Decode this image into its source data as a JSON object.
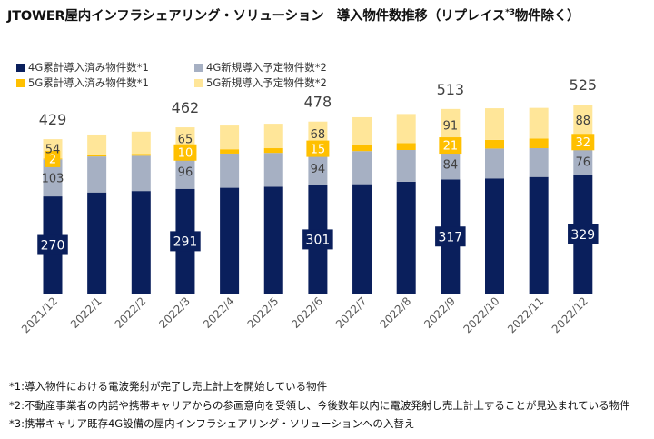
{
  "title": {
    "main": "JTOWER屋内インフラシェアリング・ソリューション　導入物件数推移（リプレイス",
    "sup": "*3",
    "after": "物件除く）"
  },
  "colors": {
    "s4g_done": "#0a1f5c",
    "s4g_plan": "#a6b0c3",
    "s5g_done": "#ffc000",
    "s5g_plan": "#ffe699",
    "axis": "#bfbfbf",
    "total_text": "#404040"
  },
  "chart_data": {
    "type": "bar",
    "stacked": true,
    "categories": [
      "2021/12",
      "2022/1",
      "2022/2",
      "2022/3",
      "2022/4",
      "2022/5",
      "2022/6",
      "2022/7",
      "2022/8",
      "2022/9",
      "2022/10",
      "2022/11",
      "2022/12"
    ],
    "series": [
      {
        "name": "4G累計導入済み物件数*1",
        "values": [
          270,
          281,
          285,
          291,
          294,
          297,
          301,
          304,
          311,
          317,
          320,
          324,
          329
        ]
      },
      {
        "name": "4G新規導入予定物件数*2",
        "values": [
          103,
          100,
          98,
          96,
          95,
          94,
          94,
          92,
          88,
          84,
          83,
          80,
          76
        ]
      },
      {
        "name": "5G累計導入済み物件数*1",
        "values": [
          2,
          3,
          5,
          10,
          12,
          13,
          15,
          17,
          19,
          21,
          24,
          27,
          32
        ]
      },
      {
        "name": "5G新規導入予定物件数*2",
        "values": [
          54,
          58,
          62,
          65,
          66,
          68,
          68,
          77,
          81,
          91,
          88,
          85,
          88
        ]
      }
    ],
    "labels": [
      {
        "category": "2021/12",
        "values": [
          "270",
          "103",
          "2",
          "54"
        ],
        "total": "429"
      },
      {
        "category": "2022/3",
        "values": [
          "291",
          "96",
          "10",
          "65"
        ],
        "total": "462"
      },
      {
        "category": "2022/6",
        "values": [
          "301",
          "94",
          "15",
          "68"
        ],
        "total": "478"
      },
      {
        "category": "2022/9",
        "values": [
          "317",
          "84",
          "21",
          "91"
        ],
        "total": "513"
      },
      {
        "category": "2022/12",
        "values": [
          "329",
          "76",
          "32",
          "88"
        ],
        "total": "525"
      }
    ],
    "ylim": [
      0,
      560
    ],
    "grid": false,
    "legend": "top-left"
  },
  "notes": [
    "*1:導入物件における電波発射が完了し売上計上を開始している物件",
    "*2:不動産事業者の内諾や携帯キャリアからの参画意向を受領し、今後数年以内に電波発射し売上計上することが見込まれている物件",
    "*3:携帯キャリア既存4G設備の屋内インフラシェアリング・ソリューションへの入替え"
  ]
}
